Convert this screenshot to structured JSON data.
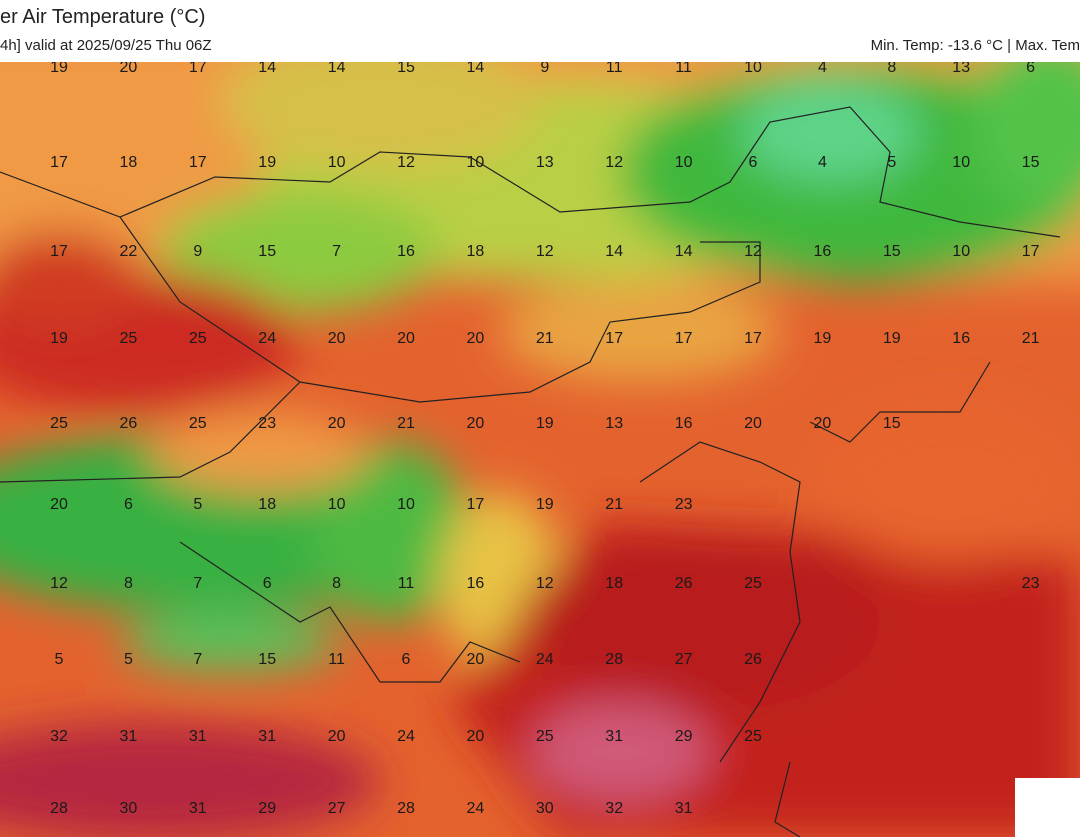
{
  "header": {
    "title": "er Air Temperature (°C)",
    "subtitle": "4h] valid at 2025/09/25 Thu 06Z",
    "range_text": "Min. Temp: -13.6 °C | Max. Tem"
  },
  "labels": [
    [
      19,
      20,
      17,
      14,
      14,
      15,
      14,
      9,
      11,
      11,
      10,
      4,
      8,
      13,
      6
    ],
    [
      17,
      18,
      17,
      19,
      10,
      12,
      10,
      13,
      12,
      10,
      6,
      4,
      5,
      10,
      15
    ],
    [
      17,
      22,
      9,
      15,
      7,
      16,
      18,
      12,
      14,
      14,
      12,
      16,
      15,
      10,
      17
    ],
    [
      19,
      25,
      25,
      24,
      20,
      20,
      20,
      21,
      17,
      17,
      17,
      19,
      19,
      16,
      21
    ],
    [
      25,
      26,
      25,
      23,
      20,
      21,
      20,
      19,
      13,
      16,
      20,
      20,
      15,
      null,
      null
    ],
    [
      20,
      6,
      5,
      18,
      10,
      10,
      17,
      19,
      21,
      23,
      null,
      null,
      null,
      null,
      null
    ],
    [
      12,
      8,
      7,
      6,
      8,
      11,
      16,
      12,
      18,
      26,
      25,
      null,
      null,
      null,
      23
    ],
    [
      5,
      5,
      7,
      15,
      11,
      6,
      20,
      24,
      28,
      27,
      26,
      null,
      null,
      null,
      null
    ],
    [
      32,
      31,
      31,
      31,
      20,
      24,
      20,
      25,
      31,
      29,
      25,
      null,
      null,
      null,
      null
    ],
    [
      28,
      30,
      31,
      29,
      27,
      28,
      24,
      30,
      32,
      31,
      null,
      null,
      null,
      null,
      null
    ]
  ]
}
